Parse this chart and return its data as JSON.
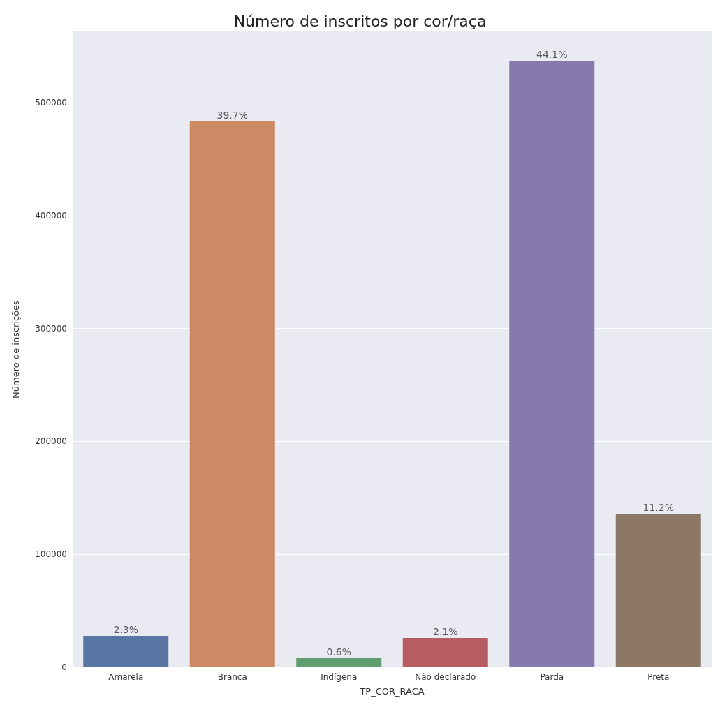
{
  "chart_data": {
    "type": "bar",
    "title": "Número de inscritos por cor/raça",
    "xlabel": "TP_COR_RACA",
    "ylabel": "Número de inscrições",
    "categories": [
      "Amarela",
      "Branca",
      "Indígena",
      "Não declarado",
      "Parda",
      "Preta"
    ],
    "values": [
      27800,
      483300,
      8000,
      25900,
      537000,
      135800
    ],
    "colors": [
      "#5975a4",
      "#cc8963",
      "#5f9e6e",
      "#b55d60",
      "#857aab",
      "#8d7866"
    ],
    "annotations": [
      {
        "text": "2.3%",
        "x": "Amarela",
        "y": 27800
      },
      {
        "text": "39.7%",
        "x": "Branca",
        "y": 483300
      },
      {
        "text": "0.6%",
        "x": "Indígena",
        "y": 8000
      },
      {
        "text": "2.1%",
        "x": "Não declarado",
        "y": 25900
      },
      {
        "text": "44.1%",
        "x": "Parda",
        "y": 537000
      },
      {
        "text": "11.2%",
        "x": "Preta",
        "y": 135800
      }
    ],
    "ylim": [
      0,
      563000
    ],
    "yticks": [
      0,
      100000,
      200000,
      300000,
      400000,
      500000
    ],
    "grid": "y"
  }
}
